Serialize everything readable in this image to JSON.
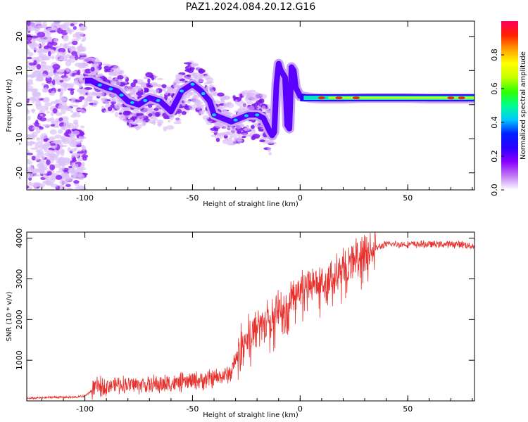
{
  "title": "PAZ1.2024.084.20.12.G16",
  "colors": {
    "snr_line": "#e8302c",
    "spectro_trace": "#3a00e0",
    "spectro_halo": "#b97ff0"
  },
  "colormap_stops": [
    "#ffffff",
    "#c07af2",
    "#8a00ff",
    "#2a00ff",
    "#0020ff",
    "#00c8ff",
    "#00ff90",
    "#30ff00",
    "#c8ff00",
    "#ffff00",
    "#ffa000",
    "#ff2000",
    "#ff0060"
  ],
  "chart_data": [
    {
      "type": "heatmap",
      "name": "spectrogram",
      "xlabel": "Height of straight line (km)",
      "ylabel": "Frequency (Hz)",
      "xlim": [
        -127,
        81
      ],
      "ylim": [
        -25,
        24.5
      ],
      "xticks": [
        -100,
        -50,
        0,
        50
      ],
      "yticks": [
        -20,
        -10,
        0,
        10,
        20
      ],
      "ridge": {
        "x": [
          -100,
          -97,
          -94,
          -90,
          -85,
          -80,
          -75,
          -70,
          -65,
          -60,
          -55,
          -50,
          -46,
          -42,
          -40,
          -36,
          -32,
          -28,
          -24,
          -20,
          -17,
          -14,
          -13,
          -12,
          -11,
          -10,
          -9,
          -8,
          -7,
          -6,
          -5,
          -4,
          -3,
          -2,
          0,
          5,
          10,
          20,
          30,
          40,
          50,
          60,
          70,
          81
        ],
        "y": [
          7,
          7,
          6,
          5,
          4,
          1,
          0,
          2,
          1,
          -2,
          4,
          6,
          4,
          1,
          -3,
          -4,
          -5,
          -4,
          -3,
          -3,
          -4,
          -8,
          -9,
          -8,
          6,
          12,
          10,
          9,
          8,
          -6,
          -7,
          11,
          10,
          5,
          2.5,
          2.0,
          1.8,
          1.8,
          2.0,
          2.0,
          2.0,
          1.8,
          1.8,
          1.8
        ]
      },
      "colorbar": {
        "label": "Normalized spectral amplitude",
        "range": [
          0,
          1
        ],
        "ticks": [
          0.0,
          0.2,
          0.4,
          0.6,
          0.8
        ]
      }
    },
    {
      "type": "line",
      "name": "snr",
      "xlabel": "Height of straight line (km)",
      "ylabel": "SNR (10 * v/v)",
      "xlim": [
        -127,
        81
      ],
      "ylim": [
        0,
        4150
      ],
      "xticks": [
        -100,
        -50,
        0,
        50
      ],
      "yticks": [
        1000,
        2000,
        3000,
        4000
      ],
      "x": [
        -127,
        -115,
        -105,
        -100,
        -97,
        -95,
        -90,
        -85,
        -80,
        -75,
        -70,
        -65,
        -60,
        -55,
        -50,
        -45,
        -40,
        -36,
        -32,
        -29,
        -27,
        -25,
        -20,
        -15,
        -10,
        -5,
        0,
        5,
        10,
        15,
        20,
        25,
        30,
        35,
        40,
        45,
        50,
        55,
        60,
        65,
        70,
        75,
        81
      ],
      "y": [
        60,
        90,
        90,
        120,
        250,
        330,
        370,
        400,
        400,
        400,
        400,
        400,
        420,
        450,
        480,
        520,
        550,
        600,
        700,
        1150,
        1450,
        1600,
        1750,
        1950,
        2200,
        2500,
        2700,
        2850,
        2950,
        3100,
        3300,
        3500,
        3650,
        3750,
        3850,
        3850,
        3850,
        3850,
        3850,
        3850,
        3850,
        3850,
        3800
      ]
    }
  ]
}
